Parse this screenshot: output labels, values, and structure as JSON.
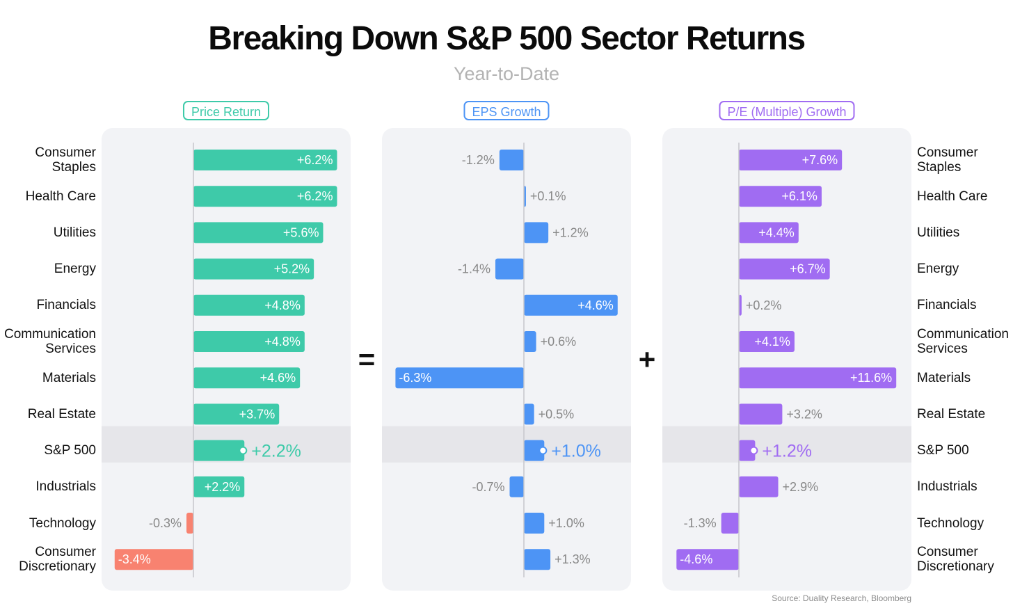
{
  "title": "Breaking Down S&P 500 Sector Returns",
  "subtitle": "Year-to-Date",
  "source": "Source: Duality Research, Bloomberg",
  "operators": [
    "=",
    "+"
  ],
  "colors": {
    "price_return": "#3ecaa9",
    "eps_growth": "#4d94f5",
    "pe_growth": "#a06cf2",
    "negative_price": "#f88270",
    "panel_bg": "#f2f3f6",
    "highlight_bg": "#e6e6ea"
  },
  "chart_data": [
    {
      "type": "bar",
      "orientation": "horizontal",
      "title": "Price Return",
      "categories": [
        "Consumer Staples",
        "Health Care",
        "Utilities",
        "Energy",
        "Financials",
        "Communication Services",
        "Materials",
        "Real Estate",
        "S&P 500",
        "Industrials",
        "Technology",
        "Consumer Discretionary"
      ],
      "values": [
        6.2,
        6.2,
        5.6,
        5.2,
        4.8,
        4.8,
        4.6,
        3.7,
        2.2,
        2.2,
        -0.3,
        -3.4
      ],
      "labels": [
        "+6.2%",
        "+6.2%",
        "+5.6%",
        "+5.2%",
        "+4.8%",
        "+4.8%",
        "+4.6%",
        "+3.7%",
        "+2.2%",
        "+2.2%",
        "-0.3%",
        "-3.4%"
      ],
      "highlight": "S&P 500"
    },
    {
      "type": "bar",
      "orientation": "horizontal",
      "title": "EPS Growth",
      "categories": [
        "Consumer Staples",
        "Health Care",
        "Utilities",
        "Energy",
        "Financials",
        "Communication Services",
        "Materials",
        "Real Estate",
        "S&P 500",
        "Industrials",
        "Technology",
        "Consumer Discretionary"
      ],
      "values": [
        -1.2,
        0.1,
        1.2,
        -1.4,
        4.6,
        0.6,
        -6.3,
        0.5,
        1.0,
        -0.7,
        1.0,
        1.3
      ],
      "labels": [
        "-1.2%",
        "+0.1%",
        "+1.2%",
        "-1.4%",
        "+4.6%",
        "+0.6%",
        "-6.3%",
        "+0.5%",
        "+1.0%",
        "-0.7%",
        "+1.0%",
        "+1.3%"
      ],
      "highlight": "S&P 500"
    },
    {
      "type": "bar",
      "orientation": "horizontal",
      "title": "P/E (Multiple) Growth",
      "categories": [
        "Consumer Staples",
        "Health Care",
        "Utilities",
        "Energy",
        "Financials",
        "Communication Services",
        "Materials",
        "Real Estate",
        "S&P 500",
        "Industrials",
        "Technology",
        "Consumer Discretionary"
      ],
      "values": [
        7.6,
        6.1,
        4.4,
        6.7,
        0.2,
        4.1,
        11.6,
        3.2,
        1.2,
        2.9,
        -1.3,
        -4.6
      ],
      "labels": [
        "+7.6%",
        "+6.1%",
        "+4.4%",
        "+6.7%",
        "+0.2%",
        "+4.1%",
        "+11.6%",
        "+3.2%",
        "+1.2%",
        "+2.9%",
        "-1.3%",
        "-4.6%"
      ],
      "highlight": "S&P 500"
    }
  ]
}
